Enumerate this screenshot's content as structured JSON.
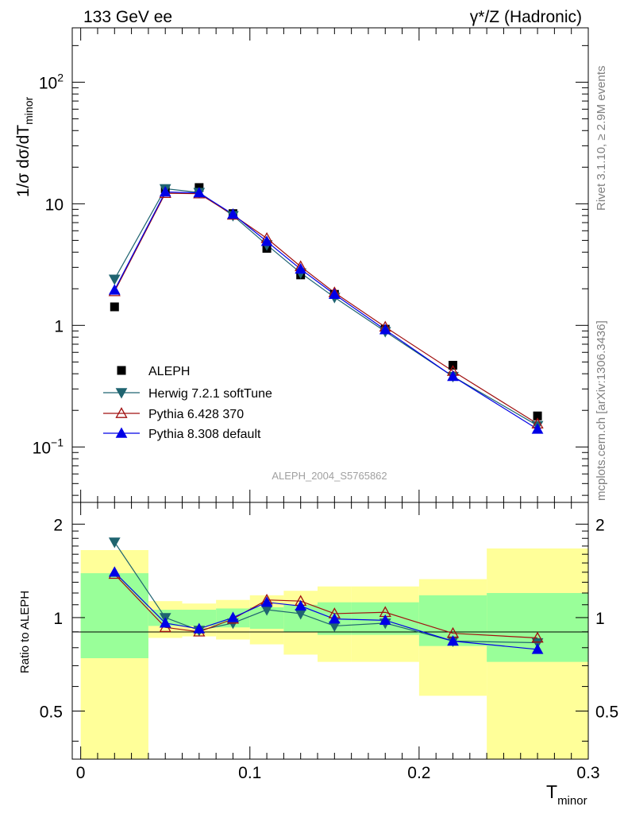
{
  "header": {
    "left_title": "133 GeV ee",
    "right_title": "γ*/Z (Hadronic)"
  },
  "side_labels": {
    "rivet": "Rivet 3.1.10, ≥ 2.9M events",
    "mcplots": "mcplots.cern.ch [arXiv:1306.3436]"
  },
  "watermark": "ALEPH_2004_S5765862",
  "colors": {
    "aleph": "#000000",
    "herwig": "#1f6470",
    "pythia6": "#a01010",
    "pythia8": "#0000e6",
    "band_inner": "#99ff99",
    "band_outer": "#ffff99"
  },
  "chart_data": [
    {
      "type": "scatter",
      "panel": "main",
      "ylabel": "1/σ  dσ/dT_minor",
      "yscale": "log",
      "ylim": [
        0.035,
        280
      ],
      "xlim": [
        -0.005,
        0.3
      ],
      "y_ticks": [
        {
          "value": 0.1,
          "label": "10^-1"
        },
        {
          "value": 1,
          "label": "1"
        },
        {
          "value": 10,
          "label": "10"
        },
        {
          "value": 100,
          "label": "10^2"
        }
      ],
      "legend_position": "lower-left",
      "x": [
        0.02,
        0.05,
        0.07,
        0.09,
        0.11,
        0.13,
        0.15,
        0.18,
        0.22,
        0.27
      ],
      "series": [
        {
          "name": "ALEPH",
          "marker": "square",
          "values": [
            1.42,
            13.3,
            13.6,
            8.3,
            4.3,
            2.6,
            1.8,
            0.93,
            0.47,
            0.18
          ]
        },
        {
          "name": "Herwig 7.2.1 softTune",
          "marker": "triangle-down",
          "values": [
            2.4,
            13.3,
            12.4,
            8.0,
            4.6,
            2.7,
            1.7,
            0.89,
            0.38,
            0.15
          ]
        },
        {
          "name": "Pythia 6.428 370",
          "marker": "triangle-up-open",
          "values": [
            1.9,
            12.2,
            12.1,
            8.1,
            5.2,
            3.05,
            1.86,
            0.97,
            0.42,
            0.155
          ]
        },
        {
          "name": "Pythia 8.308 default",
          "marker": "triangle-up",
          "values": [
            1.95,
            12.5,
            12.3,
            8.2,
            4.9,
            2.9,
            1.8,
            0.92,
            0.38,
            0.14
          ]
        }
      ]
    },
    {
      "type": "line",
      "panel": "ratio",
      "ylabel": "Ratio to ALEPH",
      "xlabel": "T_minor",
      "yscale": "log",
      "ylim": [
        0.35,
        2.35
      ],
      "xlim": [
        -0.005,
        0.3
      ],
      "y_ticks": [
        0.5,
        1,
        2
      ],
      "x_ticks": [
        0,
        0.1,
        0.2,
        0.3
      ],
      "x_tick_labels": [
        "0",
        "0.1",
        "0.2",
        "0.3"
      ],
      "reference_line": 1,
      "bands": [
        {
          "x_range": [
            0.0,
            0.04
          ],
          "inner": [
            0.74,
            1.39
          ],
          "outer": [
            0.35,
            1.65
          ]
        },
        {
          "x_range": [
            0.04,
            0.06
          ],
          "inner": [
            0.94,
            1.06
          ],
          "outer": [
            0.86,
            1.13
          ]
        },
        {
          "x_range": [
            0.06,
            0.08
          ],
          "inner": [
            0.94,
            1.06
          ],
          "outer": [
            0.87,
            1.11
          ]
        },
        {
          "x_range": [
            0.08,
            0.1
          ],
          "inner": [
            0.93,
            1.07
          ],
          "outer": [
            0.85,
            1.14
          ]
        },
        {
          "x_range": [
            0.1,
            0.12
          ],
          "inner": [
            0.92,
            1.08
          ],
          "outer": [
            0.82,
            1.18
          ]
        },
        {
          "x_range": [
            0.12,
            0.14
          ],
          "inner": [
            0.9,
            1.1
          ],
          "outer": [
            0.76,
            1.22
          ]
        },
        {
          "x_range": [
            0.14,
            0.16
          ],
          "inner": [
            0.88,
            1.12
          ],
          "outer": [
            0.72,
            1.26
          ]
        },
        {
          "x_range": [
            0.16,
            0.2
          ],
          "inner": [
            0.88,
            1.12
          ],
          "outer": [
            0.72,
            1.26
          ]
        },
        {
          "x_range": [
            0.2,
            0.24
          ],
          "inner": [
            0.81,
            1.18
          ],
          "outer": [
            0.56,
            1.33
          ]
        },
        {
          "x_range": [
            0.24,
            0.3
          ],
          "inner": [
            0.72,
            1.2
          ],
          "outer": [
            0.35,
            1.67
          ]
        }
      ],
      "x": [
        0.02,
        0.05,
        0.07,
        0.09,
        0.11,
        0.13,
        0.15,
        0.18,
        0.22,
        0.27
      ],
      "series": [
        {
          "name": "Herwig 7.2.1 softTune",
          "marker": "triangle-down",
          "values": [
            1.75,
            1.0,
            0.91,
            0.96,
            1.06,
            1.03,
            0.94,
            0.96,
            0.84,
            0.83
          ]
        },
        {
          "name": "Pythia 6.428 370",
          "marker": "triangle-up-open",
          "values": [
            1.38,
            0.93,
            0.9,
            0.99,
            1.14,
            1.13,
            1.03,
            1.04,
            0.89,
            0.86
          ]
        },
        {
          "name": "Pythia 8.308 default",
          "marker": "triangle-up",
          "values": [
            1.4,
            0.96,
            0.92,
            1.0,
            1.12,
            1.09,
            0.99,
            0.98,
            0.84,
            0.79
          ]
        }
      ]
    }
  ]
}
